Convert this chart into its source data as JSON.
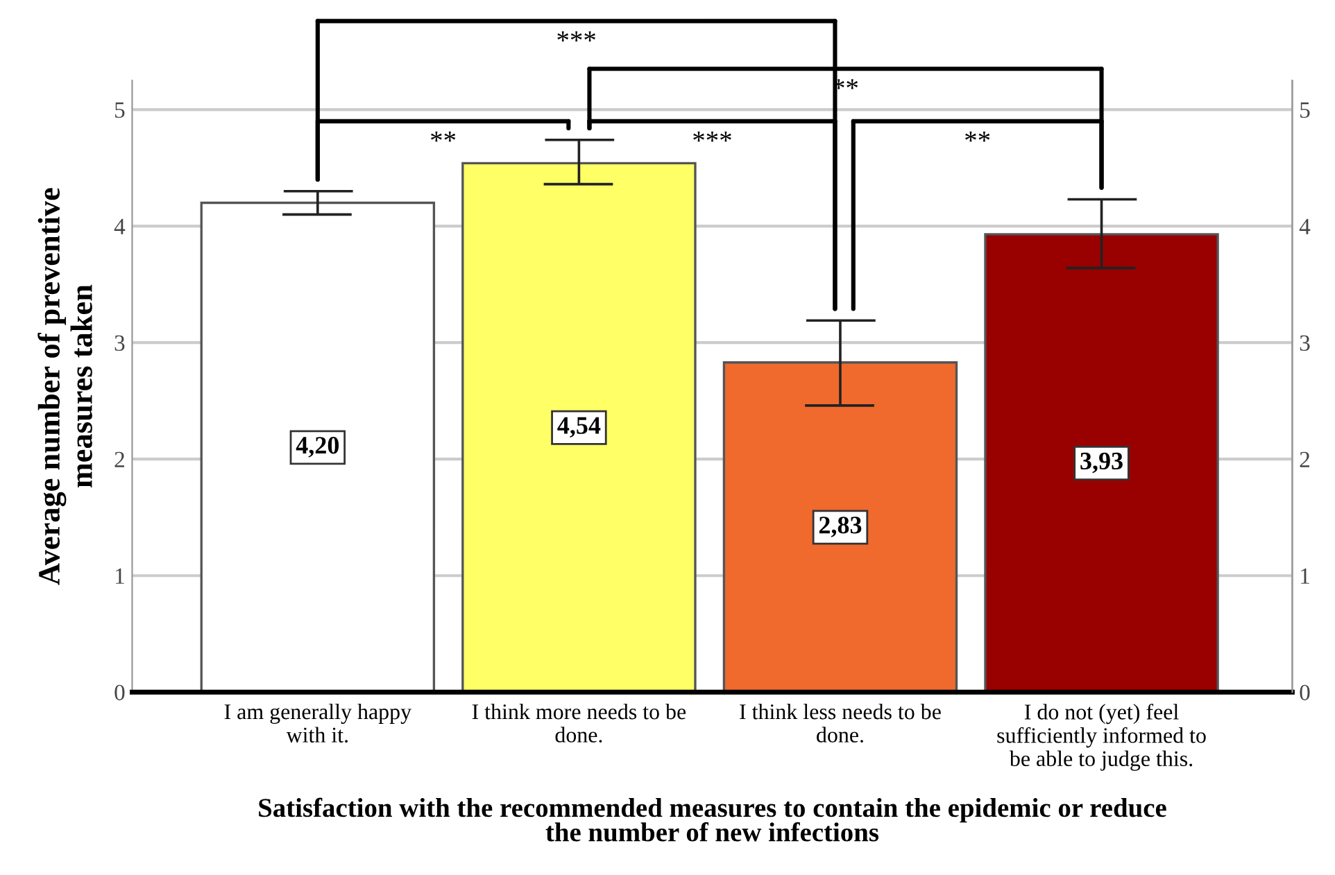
{
  "chart_data": {
    "type": "bar",
    "xlabel": "Satisfaction with the recommended measures to contain the epidemic or reduce\nthe number of new infections",
    "ylabel": "Average number of preventive\nmeasures taken",
    "categories": [
      "I am generally happy\nwith it.",
      "I think more needs to be\ndone.",
      "I think less needs to be\ndone.",
      "I do not (yet) feel\nsufficiently informed to\nbe able to judge this."
    ],
    "values": [
      4.2,
      4.54,
      2.83,
      3.93
    ],
    "colors": [
      "#ffffff",
      "#ffff66",
      "#f0692d",
      "#990000"
    ],
    "value_labels": [
      "4,20",
      "4,54",
      "2,83",
      "3,93"
    ],
    "errors": [
      [
        4.1,
        4.3
      ],
      [
        4.36,
        4.74
      ],
      [
        2.46,
        3.19
      ],
      [
        3.64,
        4.23
      ]
    ],
    "ylim": [
      0,
      5.25
    ],
    "yticks": [
      0,
      1,
      2,
      3,
      4,
      5
    ],
    "y2lim": [
      0,
      5.25
    ],
    "y2ticks": [
      0,
      1,
      2,
      3,
      4,
      5
    ],
    "grid": "y",
    "legend": false,
    "annotations": [
      "**",
      "***",
      "***",
      "**",
      "**"
    ]
  }
}
